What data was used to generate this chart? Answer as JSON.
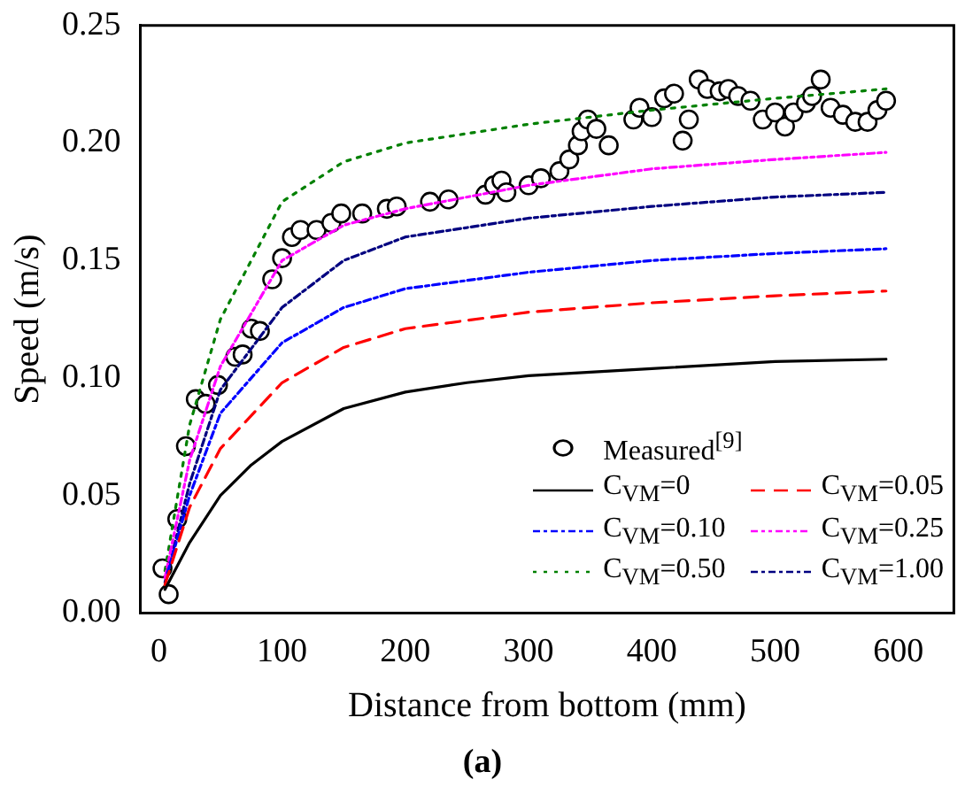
{
  "chart_data": {
    "type": "line",
    "xlabel": "Distance from bottom (mm)",
    "ylabel": "Speed (m/s)",
    "annotations": [
      "(a)"
    ],
    "xlim": [
      -15,
      645
    ],
    "xticks": [
      0,
      100,
      200,
      300,
      400,
      500,
      600
    ],
    "ylim": [
      0,
      0.25
    ],
    "yticks": [
      {
        "value": 0,
        "label": "0.00"
      },
      0.05,
      {
        "value": 0.1,
        "label": "0.10"
      },
      0.15,
      {
        "value": 0.2,
        "label": "0.20"
      },
      0.25
    ],
    "grid": false,
    "legend": "bottom right",
    "marker": "none",
    "series": [
      {
        "name": "Measured$^{[9]}$",
        "type": "scatter",
        "marker": "circle",
        "color": "#000000",
        "x": [
          3,
          8,
          15,
          22,
          30,
          38,
          48,
          62,
          68,
          75,
          82,
          92,
          100,
          108,
          115,
          128,
          140,
          148,
          165,
          185,
          193,
          220,
          235,
          265,
          272,
          278,
          282,
          300,
          310,
          325,
          333,
          340,
          343,
          348,
          355,
          365,
          385,
          390,
          400,
          410,
          418,
          425,
          430,
          438,
          445,
          455,
          462,
          470,
          480,
          490,
          500,
          508,
          515,
          525,
          530,
          537,
          545,
          555,
          565,
          575,
          583,
          590
        ],
        "values": [
          0.019,
          0.008,
          0.04,
          0.071,
          0.091,
          0.089,
          0.097,
          0.109,
          0.11,
          0.121,
          0.12,
          0.142,
          0.151,
          0.16,
          0.163,
          0.163,
          0.166,
          0.17,
          0.17,
          0.172,
          0.173,
          0.175,
          0.176,
          0.178,
          0.182,
          0.184,
          0.179,
          0.182,
          0.185,
          0.188,
          0.193,
          0.199,
          0.205,
          0.21,
          0.206,
          0.199,
          0.21,
          0.215,
          0.211,
          0.219,
          0.221,
          0.201,
          0.21,
          0.227,
          0.223,
          0.222,
          0.223,
          0.22,
          0.218,
          0.21,
          0.213,
          0.207,
          0.213,
          0.217,
          0.22,
          0.227,
          0.215,
          0.212,
          0.209,
          0.209,
          0.214,
          0.218
        ]
      },
      {
        "name": "C$_{VM}$=0",
        "line_style": "solid",
        "color": "#000000",
        "x": [
          5,
          25,
          50,
          75,
          100,
          150,
          200,
          250,
          300,
          400,
          500,
          590
        ],
        "values": [
          0.01,
          0.03,
          0.05,
          0.063,
          0.073,
          0.087,
          0.094,
          0.098,
          0.101,
          0.104,
          0.107,
          0.108
        ]
      },
      {
        "name": "C$_{VM}$=0.05",
        "line_style": "dashed",
        "color": "#ff0000",
        "x": [
          5,
          25,
          50,
          100,
          150,
          200,
          300,
          400,
          500,
          590
        ],
        "values": [
          0.012,
          0.045,
          0.07,
          0.098,
          0.113,
          0.121,
          0.128,
          0.132,
          0.135,
          0.137
        ]
      },
      {
        "name": "C$_{VM}$=0.10",
        "line_style": "dashdot",
        "color": "#0000ff",
        "x": [
          7,
          25,
          50,
          100,
          150,
          200,
          300,
          400,
          500,
          590
        ],
        "values": [
          0.017,
          0.05,
          0.085,
          0.115,
          0.13,
          0.138,
          0.145,
          0.15,
          0.153,
          0.155
        ]
      },
      {
        "name": "C$_{VM}$=0.25",
        "line_style": "dashdotdot",
        "color": "#ff00ff",
        "x": [
          5,
          25,
          50,
          100,
          150,
          200,
          300,
          400,
          500,
          590
        ],
        "values": [
          0.015,
          0.065,
          0.105,
          0.15,
          0.165,
          0.172,
          0.182,
          0.189,
          0.193,
          0.196
        ]
      },
      {
        "name": "C$_{VM}$=0.50",
        "line_style": "dotted",
        "color": "#008000",
        "x": [
          5,
          25,
          50,
          100,
          150,
          200,
          300,
          400,
          500,
          590
        ],
        "values": [
          0.018,
          0.08,
          0.125,
          0.175,
          0.192,
          0.2,
          0.208,
          0.214,
          0.219,
          0.223
        ]
      },
      {
        "name": "C$_{VM}$=1.00",
        "line_style": "shortdashdot",
        "color": "#000080",
        "x": [
          5,
          25,
          50,
          100,
          150,
          200,
          300,
          400,
          500,
          590
        ],
        "values": [
          0.013,
          0.055,
          0.095,
          0.13,
          0.15,
          0.16,
          0.168,
          0.173,
          0.177,
          0.179
        ]
      }
    ]
  }
}
